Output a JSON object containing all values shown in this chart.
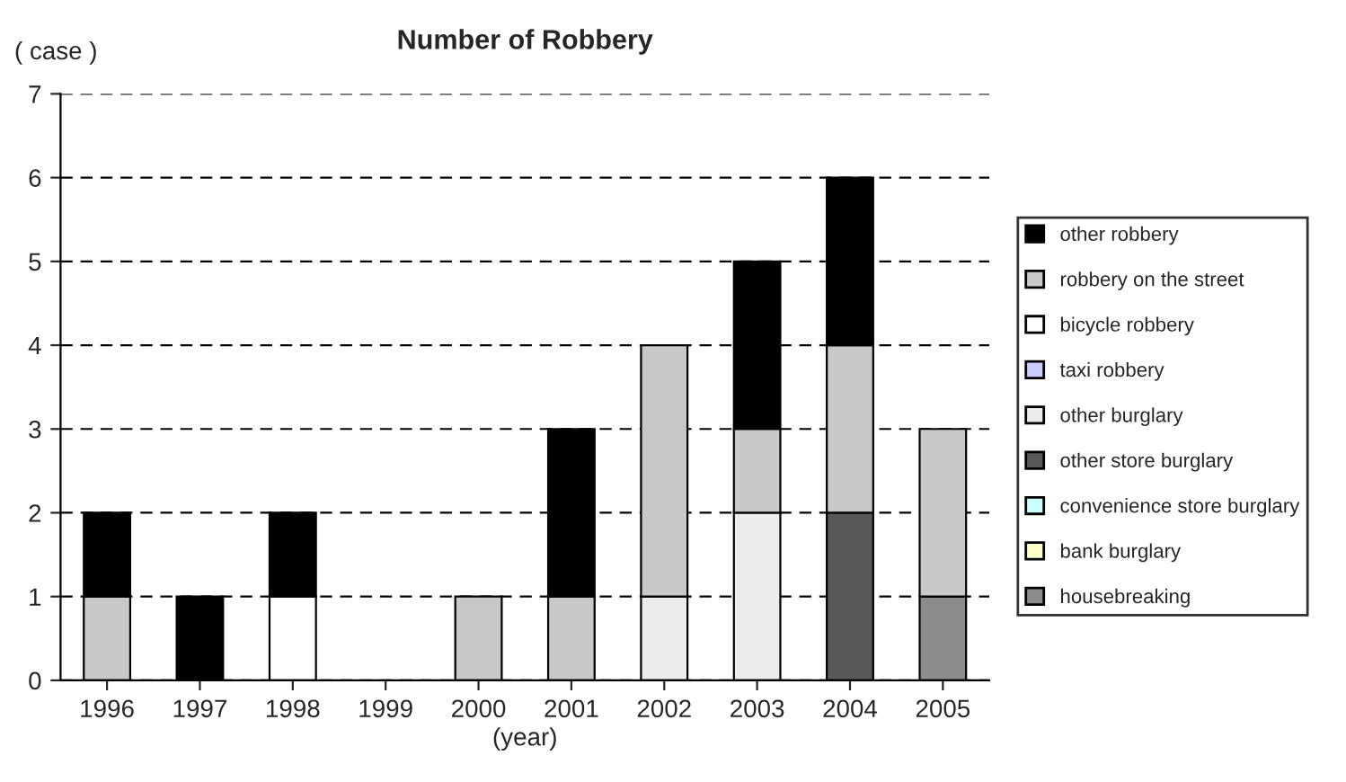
{
  "chart_data": {
    "type": "bar",
    "title": "Number of Robbery",
    "ylabel": "( case )",
    "xlabel": "(year)",
    "categories": [
      "1996",
      "1997",
      "1998",
      "1999",
      "2000",
      "2001",
      "2002",
      "2003",
      "2004",
      "2005"
    ],
    "stacked": true,
    "ylim": [
      0,
      7
    ],
    "yticks": [
      0,
      1,
      2,
      3,
      4,
      5,
      6,
      7
    ],
    "grid": "y",
    "legend": "right",
    "series": [
      {
        "name": "housebreaking",
        "color": "#8c8c8c",
        "values": [
          0,
          0,
          0,
          0,
          0,
          0,
          0,
          0,
          0,
          1
        ]
      },
      {
        "name": "bank burglary",
        "color": "#ffffcc",
        "values": [
          0,
          0,
          0,
          0,
          0,
          0,
          0,
          0,
          0,
          0
        ]
      },
      {
        "name": "convenience store burglary",
        "color": "#ccffff",
        "values": [
          0,
          0,
          0,
          0,
          0,
          0,
          0,
          0,
          0,
          0
        ]
      },
      {
        "name": "other store burglary",
        "color": "#595959",
        "values": [
          0,
          0,
          0,
          0,
          0,
          0,
          0,
          0,
          2,
          0
        ]
      },
      {
        "name": "other burglary",
        "color": "#ececec",
        "values": [
          0,
          0,
          0,
          0,
          0,
          0,
          1,
          2,
          0,
          0
        ]
      },
      {
        "name": "taxi robbery",
        "color": "#ccccff",
        "values": [
          0,
          0,
          0,
          0,
          0,
          0,
          0,
          0,
          0,
          0
        ]
      },
      {
        "name": "bicycle robbery",
        "color": "#ffffff",
        "values": [
          0,
          0,
          1,
          0,
          0,
          0,
          0,
          0,
          0,
          0
        ]
      },
      {
        "name": "robbery on the street",
        "color": "#c8c8c8",
        "values": [
          1,
          0,
          0,
          0,
          1,
          1,
          3,
          1,
          2,
          2
        ]
      },
      {
        "name": "other robbery",
        "color": "#000000",
        "values": [
          1,
          1,
          1,
          0,
          0,
          2,
          0,
          2,
          2,
          0
        ]
      }
    ]
  }
}
